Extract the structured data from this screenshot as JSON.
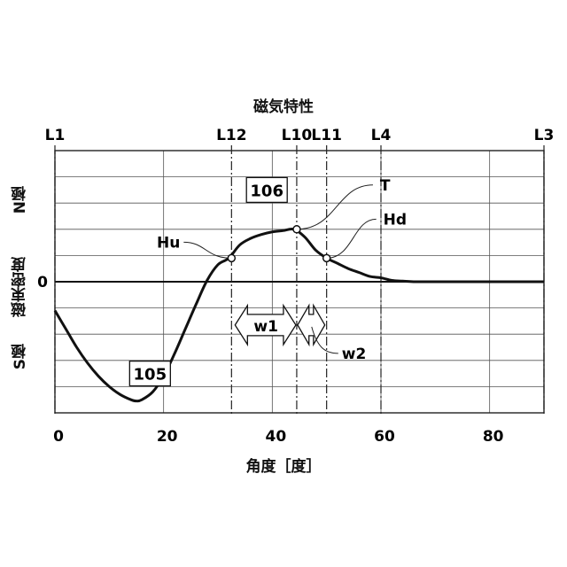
{
  "chart_data": {
    "type": "line",
    "title": "磁気特性",
    "xlabel": "角度［度］",
    "ylabel": {
      "top": "N極",
      "middle": "磁束密度",
      "bottom": "S極"
    },
    "y_zero_label": "0",
    "xlim": [
      0,
      90
    ],
    "ylim": [
      -1.0,
      1.0
    ],
    "x_ticks": [
      "0",
      "20",
      "40",
      "60",
      "80"
    ],
    "x_tick_values": [
      0,
      20,
      40,
      60,
      80
    ],
    "grid": true,
    "series": [
      {
        "x": [
          0,
          2,
          4,
          6,
          8,
          10,
          12,
          14,
          15,
          16,
          18,
          20,
          22,
          24,
          26,
          28,
          30,
          32,
          34,
          36,
          38,
          40,
          42,
          44,
          46,
          48,
          50,
          52,
          54,
          56,
          58,
          60,
          62,
          64,
          66,
          70,
          80,
          90
        ],
        "y": [
          -0.22,
          -0.36,
          -0.5,
          -0.62,
          -0.72,
          -0.8,
          -0.86,
          -0.9,
          -0.91,
          -0.9,
          -0.84,
          -0.72,
          -0.55,
          -0.36,
          -0.17,
          0.01,
          0.13,
          0.18,
          0.28,
          0.33,
          0.36,
          0.38,
          0.39,
          0.4,
          0.34,
          0.24,
          0.18,
          0.14,
          0.1,
          0.07,
          0.04,
          0.03,
          0.01,
          0.005,
          0.0,
          0.0,
          0.0,
          0.0
        ]
      }
    ],
    "vertical_lines": [
      {
        "label": "L1",
        "x": 0
      },
      {
        "label": "L12",
        "x": 32.5
      },
      {
        "label": "L10",
        "x": 44.5
      },
      {
        "label": "L11",
        "x": 50
      },
      {
        "label": "L4",
        "x": 60
      },
      {
        "label": "L3",
        "x": 90
      }
    ],
    "points": [
      {
        "label": "Hu",
        "x": 32.5,
        "y": 0.18
      },
      {
        "label": "T",
        "x": 44.5,
        "y": 0.4
      },
      {
        "label": "Hd",
        "x": 50,
        "y": 0.18
      }
    ],
    "box_labels": [
      {
        "label": "106",
        "x": 39,
        "y": 0.7
      },
      {
        "label": "105",
        "x": 17.5,
        "y": -0.7
      }
    ],
    "widths": [
      {
        "label": "w1",
        "x_from": 32.5,
        "x_to": 44.5
      },
      {
        "label": "w2",
        "x_from": 44.5,
        "x_to": 50
      }
    ]
  }
}
